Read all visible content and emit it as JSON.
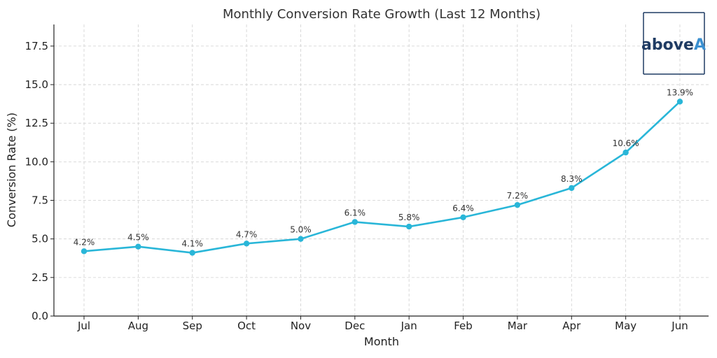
{
  "chart_data": {
    "type": "line",
    "title": "Monthly Conversion Rate Growth (Last 12 Months)",
    "xlabel": "Month",
    "ylabel": "Conversion Rate (%)",
    "categories": [
      "Jul",
      "Aug",
      "Sep",
      "Oct",
      "Nov",
      "Dec",
      "Jan",
      "Feb",
      "Mar",
      "Apr",
      "May",
      "Jun"
    ],
    "values": [
      4.2,
      4.5,
      4.1,
      4.7,
      5.0,
      6.1,
      5.8,
      6.4,
      7.2,
      8.3,
      10.6,
      13.9
    ],
    "data_labels": [
      "4.2%",
      "4.5%",
      "4.1%",
      "4.7%",
      "5.0%",
      "6.1%",
      "5.8%",
      "6.4%",
      "7.2%",
      "8.3%",
      "10.6%",
      "13.9%"
    ],
    "ylim": [
      0,
      18.9
    ],
    "yticks": [
      0.0,
      2.5,
      5.0,
      7.5,
      10.0,
      12.5,
      15.0,
      17.5
    ],
    "ytick_labels": [
      "0.0",
      "2.5",
      "5.0",
      "7.5",
      "10.0",
      "12.5",
      "15.0",
      "17.5"
    ],
    "grid": true,
    "line_color": "#29b6d8",
    "grid_color": "#d0d0d0"
  },
  "logo": {
    "text_part1": "above",
    "text_part2": "A",
    "color_dark": "#1f3b63",
    "color_accent": "#3a8fd0"
  }
}
